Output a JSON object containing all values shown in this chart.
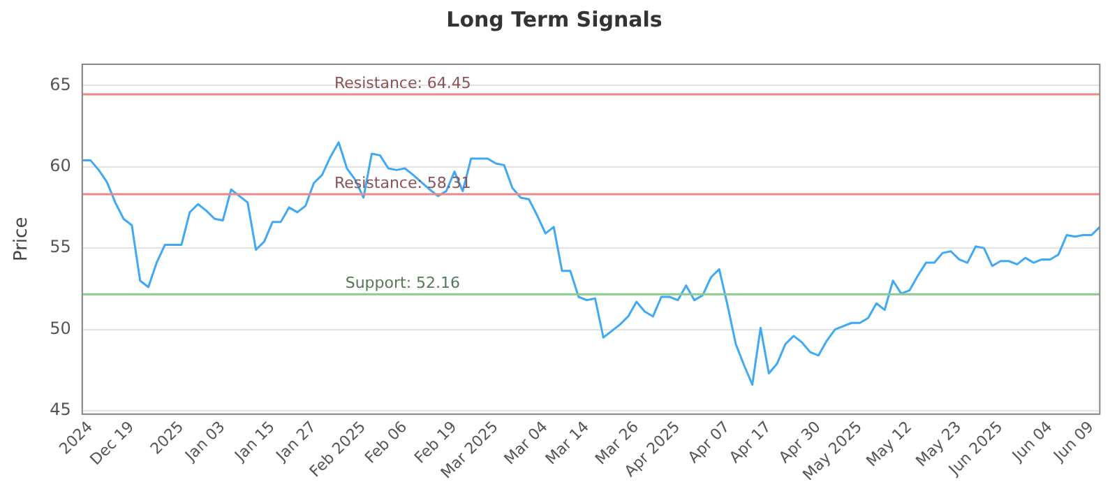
{
  "chart_data": {
    "type": "line",
    "title": "Long Term Signals",
    "ylabel": "Price",
    "categories": [
      null,
      "2024",
      null,
      null,
      null,
      null,
      "Dec 19",
      null,
      null,
      null,
      null,
      null,
      "2025",
      null,
      null,
      null,
      null,
      "Jan 03",
      null,
      null,
      null,
      null,
      null,
      "Jan 15",
      null,
      null,
      null,
      null,
      "Jan 27",
      null,
      null,
      null,
      null,
      null,
      "Feb 2025",
      null,
      null,
      null,
      null,
      "Feb 06",
      null,
      null,
      null,
      null,
      null,
      "Feb 19",
      null,
      null,
      null,
      null,
      "Mar 2025",
      null,
      null,
      null,
      null,
      null,
      "Mar 04",
      null,
      null,
      null,
      null,
      "Mar 14",
      null,
      null,
      null,
      null,
      null,
      "Mar 26",
      null,
      null,
      null,
      null,
      "Apr 2025",
      null,
      null,
      null,
      null,
      null,
      "Apr 07",
      null,
      null,
      null,
      null,
      "Apr 17",
      null,
      null,
      null,
      null,
      null,
      "Apr 30",
      null,
      null,
      null,
      null,
      "May 2025",
      null,
      null,
      null,
      null,
      null,
      "May 12",
      null,
      null,
      null,
      null,
      null,
      "May 23",
      null,
      null,
      null,
      null,
      "Jun 2025",
      null,
      null,
      null,
      null,
      null,
      "Jun 04",
      null,
      null,
      null,
      null,
      "Jun 09",
      null
    ],
    "series": [
      {
        "color": "#3fa9f5",
        "values": [
          60.4,
          60.4,
          59.8,
          59.05,
          57.8,
          56.8,
          56.4,
          53.0,
          52.6,
          54.1,
          55.2,
          55.2,
          55.2,
          57.2,
          57.7,
          57.3,
          56.8,
          56.7,
          58.6,
          58.2,
          57.8,
          54.9,
          55.4,
          56.6,
          56.6,
          57.5,
          57.2,
          57.6,
          59.0,
          59.5,
          60.6,
          61.5,
          59.9,
          59.2,
          58.1,
          60.8,
          60.7,
          59.9,
          59.8,
          59.9,
          59.5,
          59.05,
          58.6,
          58.2,
          58.5,
          59.7,
          58.5,
          60.5,
          60.5,
          60.5,
          60.2,
          60.1,
          58.7,
          58.1,
          58.0,
          57.0,
          55.9,
          56.3,
          53.6,
          53.6,
          52.0,
          51.8,
          51.9,
          49.5,
          49.9,
          50.3,
          50.8,
          51.7,
          51.1,
          50.8,
          52.0,
          52.0,
          51.8,
          52.7,
          51.8,
          52.1,
          53.2,
          53.7,
          51.5,
          49.1,
          47.8,
          46.6,
          50.1,
          47.3,
          47.9,
          49.1,
          49.6,
          49.2,
          48.6,
          48.4,
          49.3,
          50.0,
          50.2,
          50.4,
          50.4,
          50.7,
          51.6,
          51.2,
          53.0,
          52.2,
          52.4,
          53.3,
          54.1,
          54.1,
          54.7,
          54.8,
          54.3,
          54.1,
          55.1,
          55.0,
          53.9,
          54.2,
          54.2,
          54.0,
          54.4,
          54.1,
          54.3,
          54.3,
          54.6,
          55.8,
          55.7,
          55.8,
          55.8,
          56.3
        ]
      }
    ],
    "ylim": [
      44.8,
      66.3
    ],
    "yticks": [
      45,
      50,
      55,
      60,
      65
    ],
    "grid": "y",
    "marker": "none",
    "line_style": "solid",
    "ref_lines": [
      {
        "axis": "y",
        "value": 64.45,
        "label": "Resistance: 64.45",
        "color": "#e88a8a"
      },
      {
        "axis": "y",
        "value": 58.31,
        "label": "Resistance: 58.31",
        "color": "#e88a8a"
      },
      {
        "axis": "y",
        "value": 52.16,
        "label": "Support: 52.16",
        "color": "#8cc98c"
      }
    ]
  }
}
